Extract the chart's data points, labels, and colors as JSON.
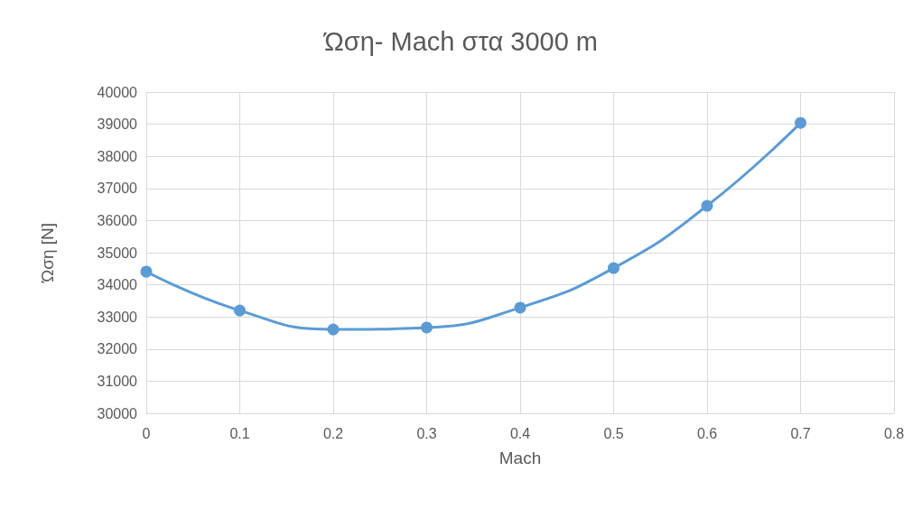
{
  "chart_data": {
    "type": "line",
    "title": "Ώση- Mach στα 3000 m",
    "xlabel": "Mach",
    "ylabel": "Ώση [N]",
    "x": [
      0,
      0.1,
      0.2,
      0.3,
      0.4,
      0.5,
      0.6,
      0.7
    ],
    "series": [
      {
        "color": "#5b9bd5",
        "values": [
          34410,
          33200,
          32610,
          32670,
          33290,
          34520,
          36460,
          39040
        ]
      }
    ],
    "xlim": [
      0,
      0.8
    ],
    "xticks": [
      0,
      0.1,
      0.2,
      0.3,
      0.4,
      0.5,
      0.6,
      0.7,
      0.8
    ],
    "ylim": [
      30000,
      40000
    ],
    "yticks": [
      30000,
      31000,
      32000,
      33000,
      34000,
      35000,
      36000,
      37000,
      38000,
      39000,
      40000
    ],
    "grid": true,
    "marker": "circle",
    "line_style": "solid"
  }
}
